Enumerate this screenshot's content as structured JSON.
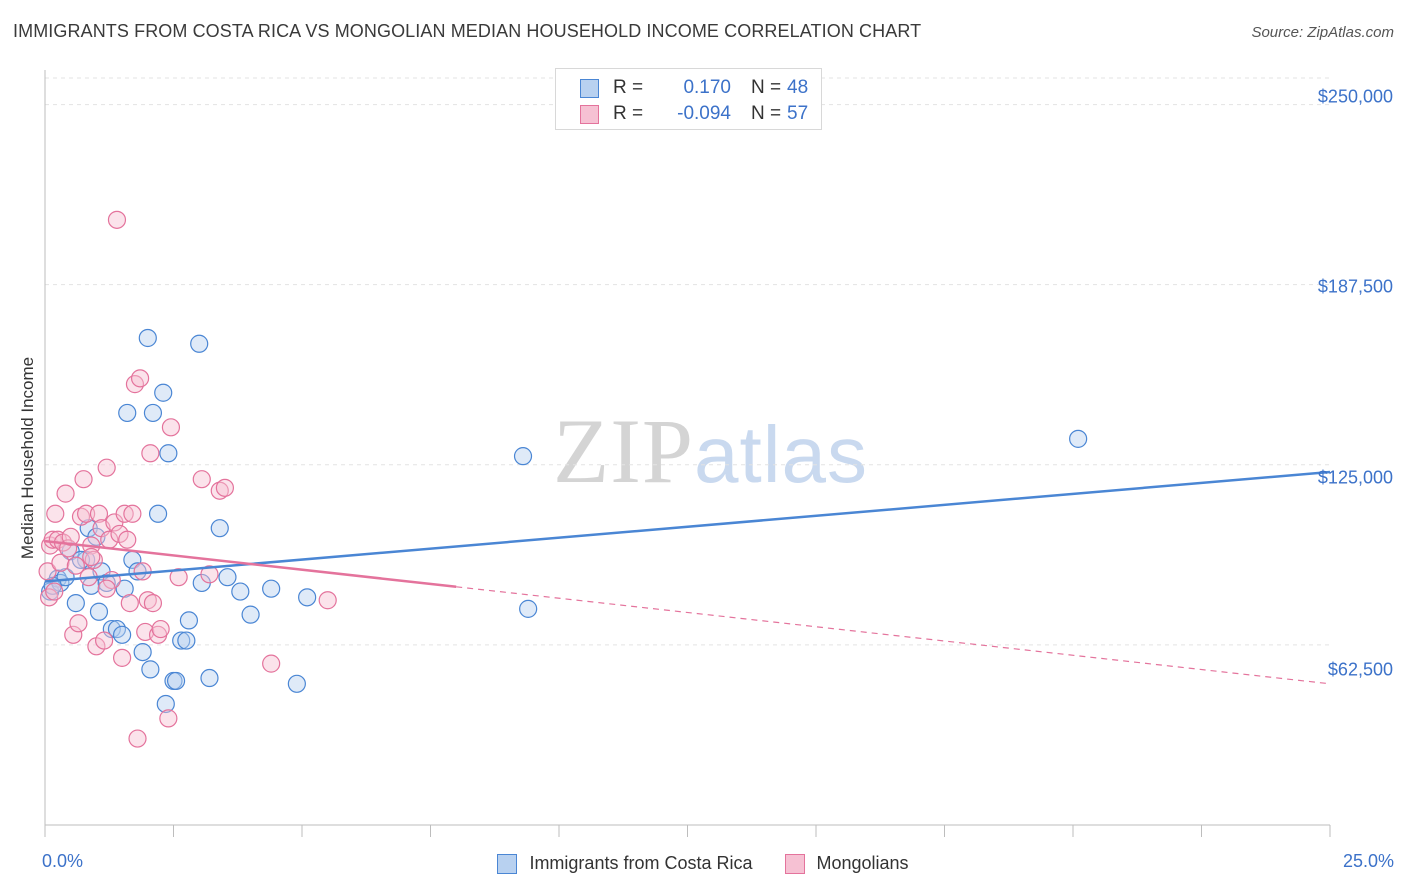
{
  "chart_data": {
    "type": "scatter",
    "title": "IMMIGRANTS FROM COSTA RICA VS MONGOLIAN MEDIAN HOUSEHOLD INCOME CORRELATION CHART",
    "source": "Source: ZipAtlas.com",
    "ylabel": "Median Household Income",
    "xlabel": "",
    "xlim": [
      0,
      25
    ],
    "ylim": [
      0,
      262000
    ],
    "x_tick_labels": [
      "0.0%",
      "25.0%"
    ],
    "y_ticks": [
      62500,
      125000,
      187500,
      250000
    ],
    "y_tick_labels": [
      "$62,500",
      "$125,000",
      "$187,500",
      "$250,000"
    ],
    "legend": {
      "series_1": {
        "r_label": "R =",
        "r_value": "0.170",
        "n_label": "N =",
        "n_value": "48"
      },
      "series_2": {
        "r_label": "R =",
        "r_value": "-0.094",
        "n_label": "N =",
        "n_value": "57"
      }
    },
    "series": [
      {
        "name": "Immigrants from Costa Rica",
        "color": "#4a86d4",
        "fill": "#b8d1f0",
        "trend": {
          "x0": 0,
          "y0": 84500,
          "x1": 25,
          "y1": 122500,
          "solid_until": 25
        },
        "points": [
          [
            0.1,
            81000
          ],
          [
            0.25,
            85500
          ],
          [
            0.3,
            84000
          ],
          [
            0.4,
            86000
          ],
          [
            0.5,
            95000
          ],
          [
            0.6,
            77000
          ],
          [
            0.8,
            92000
          ],
          [
            0.85,
            103000
          ],
          [
            0.9,
            83000
          ],
          [
            1.0,
            100000
          ],
          [
            1.1,
            88000
          ],
          [
            1.2,
            84000
          ],
          [
            1.3,
            68000
          ],
          [
            1.4,
            68000
          ],
          [
            1.5,
            66000
          ],
          [
            1.55,
            82000
          ],
          [
            1.6,
            143000
          ],
          [
            1.7,
            92000
          ],
          [
            1.8,
            88000
          ],
          [
            1.9,
            60000
          ],
          [
            2.0,
            169000
          ],
          [
            2.05,
            54000
          ],
          [
            2.1,
            143000
          ],
          [
            2.2,
            108000
          ],
          [
            2.3,
            150000
          ],
          [
            2.35,
            42000
          ],
          [
            2.4,
            129000
          ],
          [
            2.5,
            50000
          ],
          [
            2.55,
            50000
          ],
          [
            2.65,
            64000
          ],
          [
            2.75,
            64000
          ],
          [
            2.8,
            71000
          ],
          [
            3.0,
            167000
          ],
          [
            3.05,
            84000
          ],
          [
            3.2,
            51000
          ],
          [
            3.4,
            103000
          ],
          [
            3.55,
            86000
          ],
          [
            3.8,
            81000
          ],
          [
            4.0,
            73000
          ],
          [
            4.4,
            82000
          ],
          [
            4.9,
            49000
          ],
          [
            5.1,
            79000
          ],
          [
            9.3,
            128000
          ],
          [
            9.4,
            75000
          ],
          [
            20.1,
            134000
          ],
          [
            0.15,
            83000
          ],
          [
            0.7,
            92000
          ],
          [
            1.05,
            74000
          ]
        ]
      },
      {
        "name": "Mongolians",
        "color": "#e4739c",
        "fill": "#f6c1d3",
        "trend": {
          "x0": 0,
          "y0": 98500,
          "x1": 25,
          "y1": 49000,
          "solid_until": 8
        },
        "points": [
          [
            0.05,
            88000
          ],
          [
            0.1,
            97000
          ],
          [
            0.15,
            99000
          ],
          [
            0.2,
            108000
          ],
          [
            0.25,
            99000
          ],
          [
            0.3,
            91000
          ],
          [
            0.35,
            98000
          ],
          [
            0.4,
            115000
          ],
          [
            0.45,
            96000
          ],
          [
            0.5,
            100000
          ],
          [
            0.55,
            66000
          ],
          [
            0.6,
            90000
          ],
          [
            0.65,
            70000
          ],
          [
            0.7,
            107000
          ],
          [
            0.75,
            120000
          ],
          [
            0.8,
            108000
          ],
          [
            0.85,
            86000
          ],
          [
            0.9,
            97000
          ],
          [
            0.95,
            92000
          ],
          [
            1.0,
            62000
          ],
          [
            1.05,
            108000
          ],
          [
            1.1,
            103000
          ],
          [
            1.15,
            64000
          ],
          [
            1.2,
            124000
          ],
          [
            1.25,
            99000
          ],
          [
            1.3,
            85000
          ],
          [
            1.35,
            105000
          ],
          [
            1.4,
            210000
          ],
          [
            1.45,
            101000
          ],
          [
            1.5,
            58000
          ],
          [
            1.55,
            108000
          ],
          [
            1.6,
            99000
          ],
          [
            1.65,
            77000
          ],
          [
            1.7,
            108000
          ],
          [
            1.75,
            153000
          ],
          [
            1.8,
            30000
          ],
          [
            1.85,
            155000
          ],
          [
            1.9,
            88000
          ],
          [
            1.95,
            67000
          ],
          [
            2.0,
            78000
          ],
          [
            2.05,
            129000
          ],
          [
            2.1,
            77000
          ],
          [
            2.2,
            66000
          ],
          [
            2.25,
            68000
          ],
          [
            2.4,
            37000
          ],
          [
            2.45,
            138000
          ],
          [
            2.6,
            86000
          ],
          [
            3.05,
            120000
          ],
          [
            3.2,
            87000
          ],
          [
            3.4,
            116000
          ],
          [
            3.5,
            117000
          ],
          [
            4.4,
            56000
          ],
          [
            5.5,
            78000
          ],
          [
            0.08,
            79000
          ],
          [
            0.18,
            81000
          ],
          [
            0.9,
            93000
          ],
          [
            1.2,
            82000
          ]
        ]
      }
    ]
  },
  "watermark": {
    "zip": "ZIP",
    "atlas": "atlas"
  }
}
